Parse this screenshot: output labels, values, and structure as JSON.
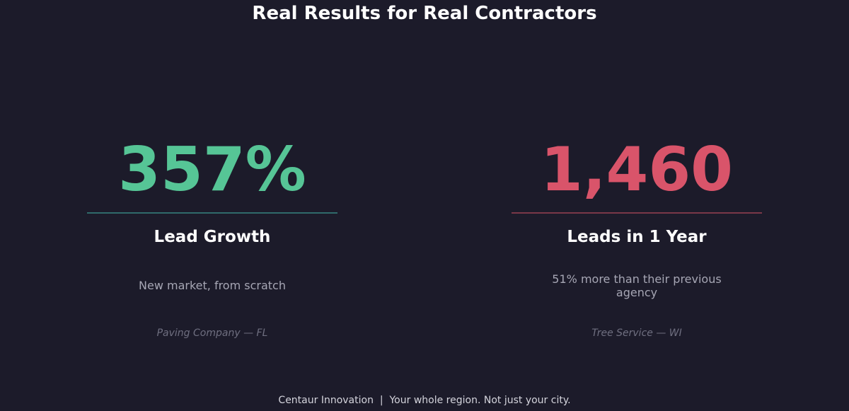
{
  "title": "Real Results for Real Contractors",
  "stats": [
    {
      "value": "357%",
      "label": "Lead Growth",
      "description": "New market, from scratch",
      "source": "Paving Company — FL",
      "accent_color": "#56c596",
      "rule_color": "#2f6b6b"
    },
    {
      "value": "1,460",
      "label": "Leads in 1 Year",
      "description": "51% more than their previous agency",
      "source": "Tree Service — WI",
      "accent_color": "#d9546a",
      "rule_color": "#7a3848"
    }
  ],
  "footer": {
    "brand": "Centaur Innovation",
    "separator": "|",
    "tagline": "Your whole region. Not just your city."
  }
}
